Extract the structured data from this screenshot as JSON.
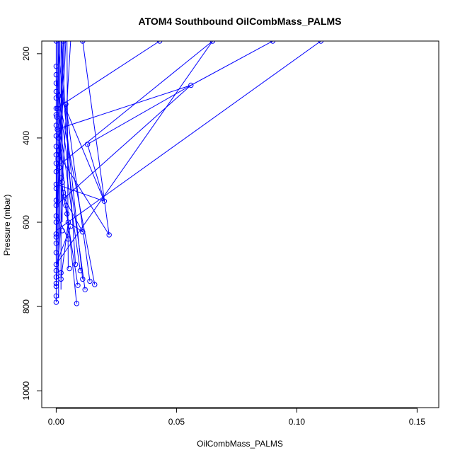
{
  "chart_data": {
    "type": "line",
    "title": "ATOM4 Southbound OilCombMass_PALMS",
    "xlabel": "OilCombMass_PALMS",
    "ylabel": "Pressure (mbar)",
    "xlim": [
      -0.006,
      0.159
    ],
    "ylim": [
      1040,
      170
    ],
    "y_reversed": true,
    "x_ticks": [
      0.0,
      0.05,
      0.1,
      0.15
    ],
    "x_tick_labels": [
      "0.00",
      "0.05",
      "0.10",
      "0.15"
    ],
    "y_ticks": [
      200,
      400,
      600,
      800,
      1000
    ],
    "y_tick_labels": [
      "200",
      "400",
      "600",
      "800",
      "1000"
    ],
    "grid": false,
    "legend": "none",
    "color": "#0000ff",
    "series": [
      {
        "points": [
          [
            0.0,
            790
          ],
          [
            0.0,
            775
          ],
          [
            0.0,
            752
          ],
          [
            0.0,
            745
          ],
          [
            0.0,
            730
          ],
          [
            0.0,
            715
          ],
          [
            0.0,
            700
          ],
          [
            0.0,
            672
          ],
          [
            0.0,
            650
          ],
          [
            0.0,
            635
          ],
          [
            0.0,
            628
          ],
          [
            0.0,
            600
          ],
          [
            0.0,
            585
          ],
          [
            0.0,
            560
          ],
          [
            0.0,
            548
          ],
          [
            0.0,
            520
          ],
          [
            0.0,
            510
          ],
          [
            0.0,
            480
          ],
          [
            0.0,
            460
          ],
          [
            0.0,
            440
          ],
          [
            0.0,
            420
          ],
          [
            0.0,
            395
          ],
          [
            0.0,
            370
          ],
          [
            0.0,
            345
          ],
          [
            0.0,
            330
          ],
          [
            0.0,
            305
          ],
          [
            0.0,
            290
          ],
          [
            0.0,
            270
          ],
          [
            0.0,
            250
          ],
          [
            0.0,
            230
          ],
          [
            0.0,
            170
          ],
          [
            0.003,
            170
          ],
          [
            0.001,
            300
          ],
          [
            0.004,
            320
          ],
          [
            0.0006,
            330
          ],
          [
            0.0002,
            350
          ],
          [
            0.0005,
            380
          ],
          [
            0.0009,
            400
          ],
          [
            0.0012,
            430
          ],
          [
            0.0008,
            450
          ],
          [
            0.0015,
            470
          ],
          [
            0.002,
            495
          ],
          [
            0.0025,
            505
          ],
          [
            0.003,
            530
          ],
          [
            0.0035,
            540
          ],
          [
            0.004,
            560
          ],
          [
            0.0045,
            580
          ],
          [
            0.005,
            600
          ],
          [
            0.005,
            640
          ],
          [
            0.0055,
            710
          ],
          [
            0.002,
            735
          ],
          [
            0.002,
            720
          ],
          [
            0.0025,
            620
          ],
          [
            0.006,
            610
          ],
          [
            0.008,
            700
          ],
          [
            0.009,
            750
          ],
          [
            0.01,
            715
          ],
          [
            0.011,
            735
          ],
          [
            0.012,
            760
          ],
          [
            0.014,
            740
          ],
          [
            0.016,
            748
          ],
          [
            0.0085,
            793
          ],
          [
            0.011,
            623
          ],
          [
            0.013,
            415
          ],
          [
            0.02,
            550
          ],
          [
            0.022,
            630
          ],
          [
            0.056,
            275
          ],
          [
            0.11,
            170
          ],
          [
            0.09,
            170
          ],
          [
            0.065,
            170
          ],
          [
            0.043,
            170
          ],
          [
            0.011,
            170
          ]
        ],
        "segments": [
          [
            [
              0.0,
              170
            ],
            [
              0.0,
              790
            ]
          ],
          [
            [
              0.001,
              170
            ],
            [
              0.001,
              780
            ]
          ],
          [
            [
              0.002,
              170
            ],
            [
              0.002,
              760
            ]
          ],
          [
            [
              0.0005,
              170
            ],
            [
              0.0005,
              700
            ]
          ],
          [
            [
              0.003,
              170
            ],
            [
              0.0,
              650
            ]
          ],
          [
            [
              0.004,
              170
            ],
            [
              0.001,
              520
            ]
          ],
          [
            [
              0.0045,
              170
            ],
            [
              0.005,
              710
            ]
          ],
          [
            [
              0.006,
              170
            ],
            [
              0.002,
              550
            ]
          ],
          [
            [
              0.002,
              170
            ],
            [
              0.008,
              700
            ]
          ],
          [
            [
              0.001,
              200
            ],
            [
              0.011,
              735
            ]
          ],
          [
            [
              0.0,
              260
            ],
            [
              0.012,
              760
            ]
          ],
          [
            [
              0.001,
              300
            ],
            [
              0.016,
              748
            ]
          ],
          [
            [
              0.004,
              320
            ],
            [
              0.014,
              740
            ]
          ],
          [
            [
              0.0005,
              330
            ],
            [
              0.01,
              715
            ]
          ],
          [
            [
              0.001,
              380
            ],
            [
              0.0085,
              793
            ]
          ],
          [
            [
              0.002,
              495
            ],
            [
              0.009,
              750
            ]
          ],
          [
            [
              0.0,
              430
            ],
            [
              0.022,
              630
            ]
          ],
          [
            [
              0.0,
              510
            ],
            [
              0.02,
              550
            ]
          ],
          [
            [
              0.001,
              290
            ],
            [
              0.02,
              550
            ]
          ],
          [
            [
              0.011,
              170
            ],
            [
              0.022,
              630
            ]
          ],
          [
            [
              0.013,
              415
            ],
            [
              0.02,
              550
            ]
          ],
          [
            [
              0.013,
              415
            ],
            [
              0.056,
              275
            ]
          ],
          [
            [
              0.056,
              275
            ],
            [
              0.09,
              170
            ]
          ],
          [
            [
              0.0,
              560
            ],
            [
              0.056,
              275
            ]
          ],
          [
            [
              0.0,
              620
            ],
            [
              0.11,
              170
            ]
          ],
          [
            [
              0.0,
              700
            ],
            [
              0.065,
              170
            ]
          ],
          [
            [
              0.0,
              330
            ],
            [
              0.043,
              170
            ]
          ],
          [
            [
              0.0,
              470
            ],
            [
              0.065,
              170
            ]
          ],
          [
            [
              0.0,
              380
            ],
            [
              0.056,
              275
            ]
          ],
          [
            [
              0.003,
              540
            ],
            [
              0.011,
              623
            ]
          ],
          [
            [
              0.005,
              600
            ],
            [
              0.011,
              623
            ]
          ],
          [
            [
              0.0,
              580
            ],
            [
              0.005,
              640
            ]
          ],
          [
            [
              0.002,
              735
            ],
            [
              0.005,
              600
            ]
          ],
          [
            [
              0.0,
              700
            ],
            [
              0.006,
              610
            ]
          ],
          [
            [
              0.0,
              750
            ],
            [
              0.003,
              530
            ]
          ],
          [
            [
              0.0,
              620
            ],
            [
              0.001,
              170
            ]
          ],
          [
            [
              0.0015,
              170
            ],
            [
              0.0015,
              640
            ]
          ],
          [
            [
              0.0025,
              170
            ],
            [
              0.0025,
              600
            ]
          ],
          [
            [
              0.0035,
              170
            ],
            [
              0.001,
              450
            ]
          ]
        ]
      }
    ]
  }
}
